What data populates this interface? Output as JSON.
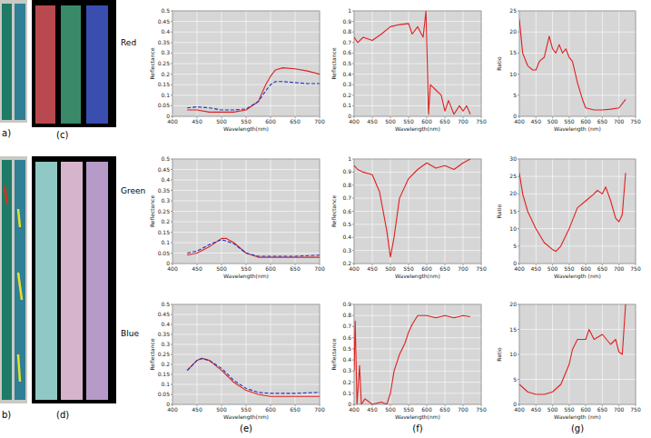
{
  "image_labels": [
    "a)",
    "b)",
    "(c)",
    "(d)"
  ],
  "row_labels": [
    "Red",
    "Green",
    "Blue"
  ],
  "column_labels": [
    "(e)",
    "(f)",
    "(g)"
  ],
  "chart_data": [
    {
      "type": "line",
      "x_label": "Wavelength(nm)",
      "y_label": "Reflectance",
      "grid": true,
      "xlim": [
        400,
        700
      ],
      "xticks": [
        400,
        450,
        500,
        550,
        600,
        650,
        700
      ],
      "ylim": [
        0,
        0.5
      ],
      "yticks": [
        0,
        0.05,
        0.1,
        0.15,
        0.2,
        0.25,
        0.3,
        0.35,
        0.4,
        0.45,
        0.5
      ],
      "series": [
        {
          "color": "#e02020",
          "line_style": "solid",
          "x": [
            430,
            450,
            475,
            500,
            525,
            550,
            575,
            590,
            600,
            610,
            625,
            650,
            675,
            700
          ],
          "values": [
            0.03,
            0.03,
            0.02,
            0.02,
            0.02,
            0.03,
            0.07,
            0.15,
            0.19,
            0.22,
            0.23,
            0.225,
            0.215,
            0.2
          ]
        },
        {
          "color": "#2030c0",
          "line_style": "dashed",
          "x": [
            430,
            450,
            475,
            500,
            525,
            550,
            575,
            590,
            600,
            610,
            625,
            650,
            675,
            700
          ],
          "values": [
            0.04,
            0.045,
            0.04,
            0.03,
            0.03,
            0.035,
            0.07,
            0.12,
            0.15,
            0.165,
            0.165,
            0.16,
            0.155,
            0.155
          ]
        }
      ]
    },
    {
      "type": "line",
      "x_label": "Wavelength(nm)",
      "y_label": "Reflectance",
      "grid": true,
      "xlim": [
        400,
        750
      ],
      "xticks": [
        400,
        450,
        500,
        550,
        600,
        650,
        700,
        750
      ],
      "ylim": [
        0,
        1
      ],
      "yticks": [
        0,
        0.1,
        0.2,
        0.3,
        0.4,
        0.5,
        0.6,
        0.7,
        0.8,
        0.9,
        1
      ],
      "series": [
        {
          "color": "#e02020",
          "line_style": "solid",
          "x": [
            400,
            410,
            425,
            450,
            475,
            500,
            525,
            550,
            560,
            575,
            590,
            598,
            605,
            610,
            625,
            640,
            650,
            660,
            675,
            690,
            700,
            710,
            720
          ],
          "values": [
            0.75,
            0.7,
            0.75,
            0.72,
            0.78,
            0.85,
            0.87,
            0.88,
            0.78,
            0.85,
            0.75,
            1,
            0.02,
            0.3,
            0.25,
            0.2,
            0.05,
            0.15,
            0.02,
            0.1,
            0.05,
            0.1,
            0.02
          ]
        }
      ]
    },
    {
      "type": "line",
      "x_label": "Wavelength (nm)",
      "y_label": "Ratio",
      "grid": true,
      "xlim": [
        400,
        750
      ],
      "xticks": [
        400,
        450,
        500,
        550,
        600,
        650,
        700,
        750
      ],
      "ylim": [
        0,
        25
      ],
      "yticks": [
        0,
        5,
        10,
        15,
        20,
        25
      ],
      "series": [
        {
          "color": "#e02020",
          "line_style": "solid",
          "x": [
            400,
            410,
            425,
            440,
            450,
            460,
            475,
            490,
            500,
            510,
            520,
            530,
            540,
            550,
            560,
            575,
            590,
            600,
            625,
            650,
            675,
            700,
            720
          ],
          "values": [
            23,
            15,
            12,
            11,
            11,
            13,
            14,
            19,
            16,
            15,
            17,
            15,
            16,
            14,
            13,
            8,
            4,
            2,
            1.5,
            1.5,
            1.7,
            2,
            4
          ]
        }
      ]
    },
    {
      "type": "line",
      "x_label": "Wavelength(nm)",
      "y_label": "Reflectance",
      "grid": true,
      "xlim": [
        400,
        700
      ],
      "xticks": [
        400,
        450,
        500,
        550,
        600,
        650,
        700
      ],
      "ylim": [
        0,
        0.5
      ],
      "yticks": [
        0,
        0.05,
        0.1,
        0.15,
        0.2,
        0.25,
        0.3,
        0.35,
        0.4,
        0.45,
        0.5
      ],
      "series": [
        {
          "color": "#e02020",
          "line_style": "solid",
          "x": [
            430,
            450,
            475,
            500,
            510,
            525,
            550,
            575,
            600,
            650,
            700
          ],
          "values": [
            0.04,
            0.05,
            0.08,
            0.12,
            0.12,
            0.1,
            0.05,
            0.03,
            0.03,
            0.03,
            0.03
          ]
        },
        {
          "color": "#2030c0",
          "line_style": "dashed",
          "x": [
            430,
            450,
            475,
            500,
            525,
            550,
            575,
            600,
            650,
            700
          ],
          "values": [
            0.05,
            0.06,
            0.09,
            0.115,
            0.095,
            0.05,
            0.035,
            0.035,
            0.035,
            0.04
          ]
        }
      ]
    },
    {
      "type": "line",
      "x_label": "Wavelength(nm)",
      "y_label": "Reflectance",
      "grid": true,
      "xlim": [
        400,
        750
      ],
      "xticks": [
        400,
        450,
        500,
        550,
        600,
        650,
        700,
        750
      ],
      "ylim": [
        0.2,
        1
      ],
      "yticks": [
        0.2,
        0.3,
        0.4,
        0.5,
        0.6,
        0.7,
        0.8,
        0.9,
        1
      ],
      "series": [
        {
          "color": "#e02020",
          "line_style": "solid",
          "x": [
            400,
            410,
            425,
            450,
            470,
            490,
            500,
            510,
            525,
            550,
            575,
            600,
            625,
            650,
            675,
            700,
            720
          ],
          "values": [
            0.95,
            0.92,
            0.9,
            0.88,
            0.75,
            0.45,
            0.25,
            0.4,
            0.7,
            0.85,
            0.92,
            0.97,
            0.93,
            0.95,
            0.92,
            0.97,
            1
          ]
        }
      ]
    },
    {
      "type": "line",
      "x_label": "Wavelength (nm)",
      "y_label": "Ratio",
      "grid": true,
      "xlim": [
        400,
        750
      ],
      "xticks": [
        400,
        450,
        500,
        550,
        600,
        650,
        700,
        750
      ],
      "ylim": [
        0,
        30
      ],
      "yticks": [
        0,
        5,
        10,
        15,
        20,
        25,
        30
      ],
      "series": [
        {
          "color": "#e02020",
          "line_style": "solid",
          "x": [
            400,
            410,
            425,
            450,
            475,
            500,
            510,
            525,
            550,
            575,
            600,
            625,
            635,
            650,
            660,
            675,
            690,
            700,
            710,
            720
          ],
          "values": [
            26,
            20,
            15,
            10,
            6,
            4,
            3.5,
            5,
            10,
            16,
            18,
            20,
            21,
            20,
            22,
            18,
            13,
            12,
            14,
            26
          ]
        }
      ]
    },
    {
      "type": "line",
      "x_label": "Wavelength(nm)",
      "y_label": "Reflectance",
      "grid": true,
      "xlim": [
        400,
        700
      ],
      "xticks": [
        400,
        450,
        500,
        550,
        600,
        650,
        700
      ],
      "ylim": [
        0,
        0.5
      ],
      "yticks": [
        0,
        0.05,
        0.1,
        0.15,
        0.2,
        0.25,
        0.3,
        0.35,
        0.4,
        0.45,
        0.5
      ],
      "series": [
        {
          "color": "#e02020",
          "line_style": "solid",
          "x": [
            430,
            450,
            460,
            475,
            500,
            525,
            550,
            575,
            600,
            650,
            700
          ],
          "values": [
            0.17,
            0.22,
            0.23,
            0.22,
            0.17,
            0.11,
            0.07,
            0.05,
            0.04,
            0.04,
            0.04
          ]
        },
        {
          "color": "#2030c0",
          "line_style": "dashed",
          "x": [
            430,
            450,
            460,
            475,
            500,
            525,
            550,
            575,
            600,
            650,
            700
          ],
          "values": [
            0.17,
            0.22,
            0.23,
            0.22,
            0.18,
            0.12,
            0.08,
            0.06,
            0.055,
            0.055,
            0.06
          ]
        }
      ]
    },
    {
      "type": "line",
      "x_label": "Wavelength(nm)",
      "y_label": "Reflectance",
      "grid": true,
      "xlim": [
        400,
        750
      ],
      "xticks": [
        400,
        450,
        500,
        550,
        600,
        650,
        700,
        750
      ],
      "ylim": [
        0,
        0.9
      ],
      "yticks": [
        0,
        0.1,
        0.2,
        0.3,
        0.4,
        0.5,
        0.6,
        0.7,
        0.8,
        0.9
      ],
      "series": [
        {
          "color": "#e02020",
          "line_style": "solid",
          "x": [
            400,
            403,
            408,
            415,
            420,
            430,
            450,
            475,
            490,
            500,
            510,
            525,
            540,
            550,
            560,
            575,
            600,
            625,
            650,
            675,
            700,
            720
          ],
          "values": [
            0.3,
            0.75,
            0,
            0.35,
            0,
            0.05,
            0,
            0.02,
            0,
            0.1,
            0.3,
            0.45,
            0.55,
            0.65,
            0.72,
            0.8,
            0.8,
            0.78,
            0.8,
            0.78,
            0.8,
            0.79
          ]
        }
      ]
    },
    {
      "type": "line",
      "x_label": "Wavelength (nm)",
      "y_label": "Ratio",
      "grid": true,
      "xlim": [
        400,
        750
      ],
      "xticks": [
        400,
        450,
        500,
        550,
        600,
        650,
        700,
        750
      ],
      "ylim": [
        0,
        20
      ],
      "yticks": [
        0,
        5,
        10,
        15,
        20
      ],
      "series": [
        {
          "color": "#e02020",
          "line_style": "solid",
          "x": [
            400,
            425,
            450,
            475,
            500,
            525,
            550,
            560,
            575,
            600,
            610,
            625,
            650,
            675,
            690,
            700,
            710,
            720
          ],
          "values": [
            4,
            2.5,
            2,
            2,
            2.5,
            4,
            8,
            11,
            13,
            13,
            15,
            13,
            14,
            12,
            13,
            10.5,
            10,
            20
          ]
        }
      ]
    }
  ]
}
